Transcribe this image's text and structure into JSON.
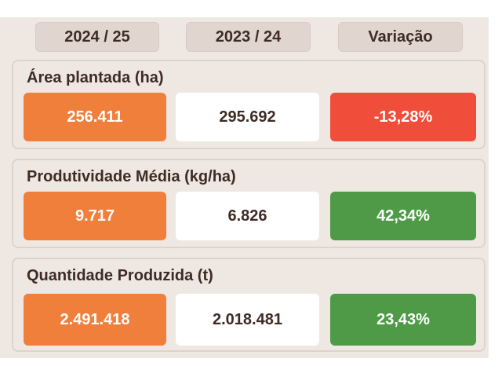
{
  "header": {
    "col1": "2024 / 25",
    "col2": "2023 / 24",
    "col3": "Variação"
  },
  "rows": [
    {
      "title": "Área plantada (ha)",
      "current": "256.411",
      "previous": "295.692",
      "variation": "-13,28%"
    },
    {
      "title": "Produtividade Média (kg/ha)",
      "current": "9.717",
      "previous": "6.826",
      "variation": "42,34%"
    },
    {
      "title": "Quantidade Produzida (t)",
      "current": "2.491.418",
      "previous": "2.018.481",
      "variation": "23,43%"
    }
  ],
  "colors": {
    "current_bg": "#f07f3c",
    "negative_bg": "#f04d3a",
    "positive_bg": "#4e9a47",
    "panel_bg": "#efe8e2"
  }
}
